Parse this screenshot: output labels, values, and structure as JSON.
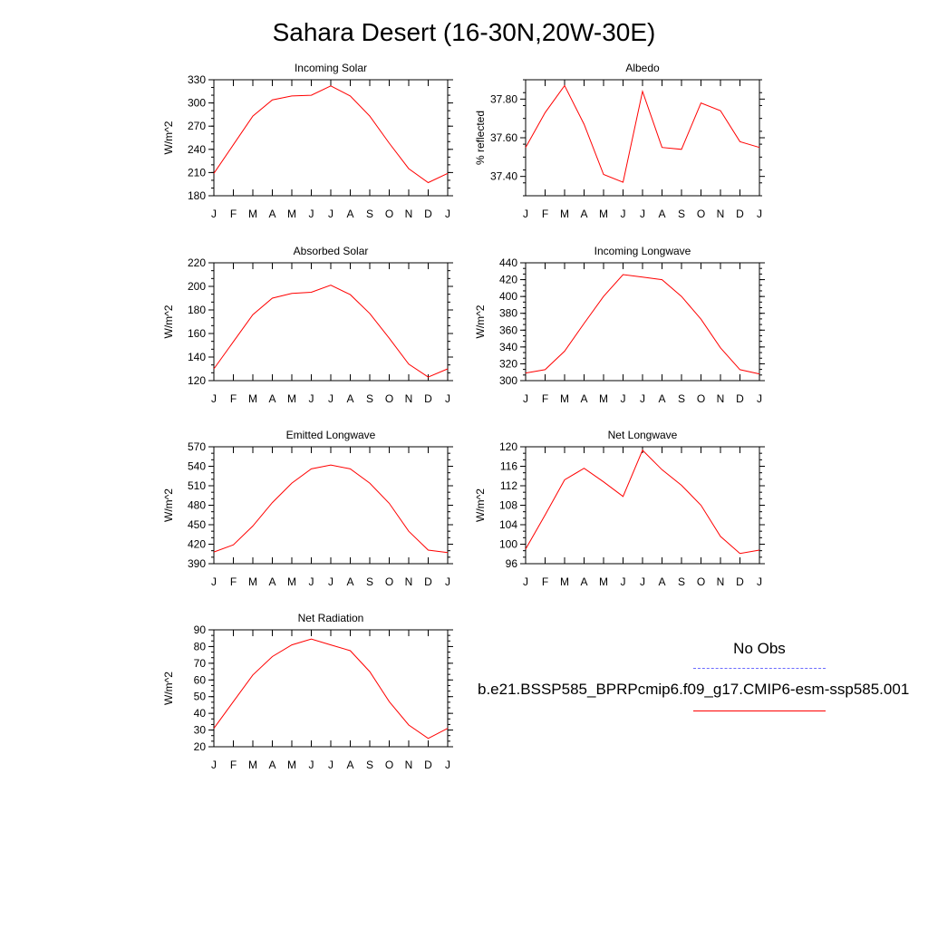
{
  "title": "Sahara Desert (16-30N,20W-30E)",
  "colors": {
    "model_line": "#ff0000",
    "obs_line": "#6b6bff",
    "axis": "#000000"
  },
  "legend": {
    "obs_label": "No Obs",
    "model_label": "b.e21.BSSP585_BPRPcmip6.f09_g17.CMIP6-esm-ssp585.001"
  },
  "chart_data": [
    {
      "type": "line",
      "title": "Incoming Solar",
      "ylabel": "W/m^2",
      "categories": [
        "J",
        "F",
        "M",
        "A",
        "M",
        "J",
        "J",
        "A",
        "S",
        "O",
        "N",
        "D",
        "J"
      ],
      "ylim": [
        180,
        330
      ],
      "yticks": [
        180,
        210,
        240,
        270,
        300,
        330
      ],
      "ytick_labels": [
        "180",
        "210",
        "240",
        "270",
        "300",
        "330"
      ],
      "series": [
        {
          "values": [
            209,
            246,
            283,
            304,
            309,
            310,
            322,
            309,
            283,
            248,
            215,
            197,
            209
          ]
        }
      ]
    },
    {
      "type": "line",
      "title": "Albedo",
      "ylabel": "% reflected",
      "categories": [
        "J",
        "F",
        "M",
        "A",
        "M",
        "J",
        "J",
        "A",
        "S",
        "O",
        "N",
        "D",
        "J"
      ],
      "ylim": [
        37.3,
        37.9
      ],
      "yticks": [
        37.4,
        37.6,
        37.8
      ],
      "ytick_labels": [
        "37.40",
        "37.60",
        "37.80"
      ],
      "series": [
        {
          "values": [
            37.55,
            37.73,
            37.87,
            37.67,
            37.41,
            37.37,
            37.84,
            37.55,
            37.54,
            37.78,
            37.74,
            37.58,
            37.55
          ]
        }
      ]
    },
    {
      "type": "line",
      "title": "Absorbed Solar",
      "ylabel": "W/m^2",
      "categories": [
        "J",
        "F",
        "M",
        "A",
        "M",
        "J",
        "J",
        "A",
        "S",
        "O",
        "N",
        "D",
        "J"
      ],
      "ylim": [
        120,
        220
      ],
      "yticks": [
        120,
        140,
        160,
        180,
        200,
        220
      ],
      "ytick_labels": [
        "120",
        "140",
        "160",
        "180",
        "200",
        "220"
      ],
      "series": [
        {
          "values": [
            130,
            153,
            176,
            190,
            194,
            195,
            201,
            193,
            177,
            156,
            134,
            123,
            130
          ]
        }
      ]
    },
    {
      "type": "line",
      "title": "Incoming Longwave",
      "ylabel": "W/m^2",
      "categories": [
        "J",
        "F",
        "M",
        "A",
        "M",
        "J",
        "J",
        "A",
        "S",
        "O",
        "N",
        "D",
        "J"
      ],
      "ylim": [
        300,
        440
      ],
      "yticks": [
        300,
        320,
        340,
        360,
        380,
        400,
        420,
        440
      ],
      "ytick_labels": [
        "300",
        "320",
        "340",
        "360",
        "380",
        "400",
        "420",
        "440"
      ],
      "series": [
        {
          "values": [
            309,
            313,
            335,
            368,
            400,
            426,
            423,
            420,
            400,
            373,
            339,
            313,
            308
          ]
        }
      ]
    },
    {
      "type": "line",
      "title": "Emitted Longwave",
      "ylabel": "W/m^2",
      "categories": [
        "J",
        "F",
        "M",
        "A",
        "M",
        "J",
        "J",
        "A",
        "S",
        "O",
        "N",
        "D",
        "J"
      ],
      "ylim": [
        390,
        570
      ],
      "yticks": [
        390,
        420,
        450,
        480,
        510,
        540,
        570
      ],
      "ytick_labels": [
        "390",
        "420",
        "450",
        "480",
        "510",
        "540",
        "570"
      ],
      "series": [
        {
          "values": [
            408,
            419,
            448,
            484,
            514,
            536,
            542,
            536,
            514,
            483,
            440,
            411,
            407
          ]
        }
      ]
    },
    {
      "type": "line",
      "title": "Net Longwave",
      "ylabel": "W/m^2",
      "categories": [
        "J",
        "F",
        "M",
        "A",
        "M",
        "J",
        "J",
        "A",
        "S",
        "O",
        "N",
        "D",
        "J"
      ],
      "ylim": [
        96,
        120
      ],
      "yticks": [
        96,
        100,
        104,
        108,
        112,
        116,
        120
      ],
      "ytick_labels": [
        "96",
        "100",
        "104",
        "108",
        "112",
        "116",
        "120"
      ],
      "series": [
        {
          "values": [
            99,
            106,
            113.2,
            115.6,
            112.8,
            109.8,
            119.3,
            115.3,
            112.1,
            108,
            101.6,
            98.1,
            98.8
          ]
        }
      ]
    },
    {
      "type": "line",
      "title": "Net Radiation",
      "ylabel": "W/m^2",
      "categories": [
        "J",
        "F",
        "M",
        "A",
        "M",
        "J",
        "J",
        "A",
        "S",
        "O",
        "N",
        "D",
        "J"
      ],
      "ylim": [
        20,
        90
      ],
      "yticks": [
        20,
        30,
        40,
        50,
        60,
        70,
        80,
        90
      ],
      "ytick_labels": [
        "20",
        "30",
        "40",
        "50",
        "60",
        "70",
        "80",
        "90"
      ],
      "series": [
        {
          "values": [
            31,
            47,
            63,
            74,
            81,
            84.5,
            81,
            77.5,
            65,
            47,
            33,
            25,
            31
          ]
        }
      ]
    }
  ]
}
